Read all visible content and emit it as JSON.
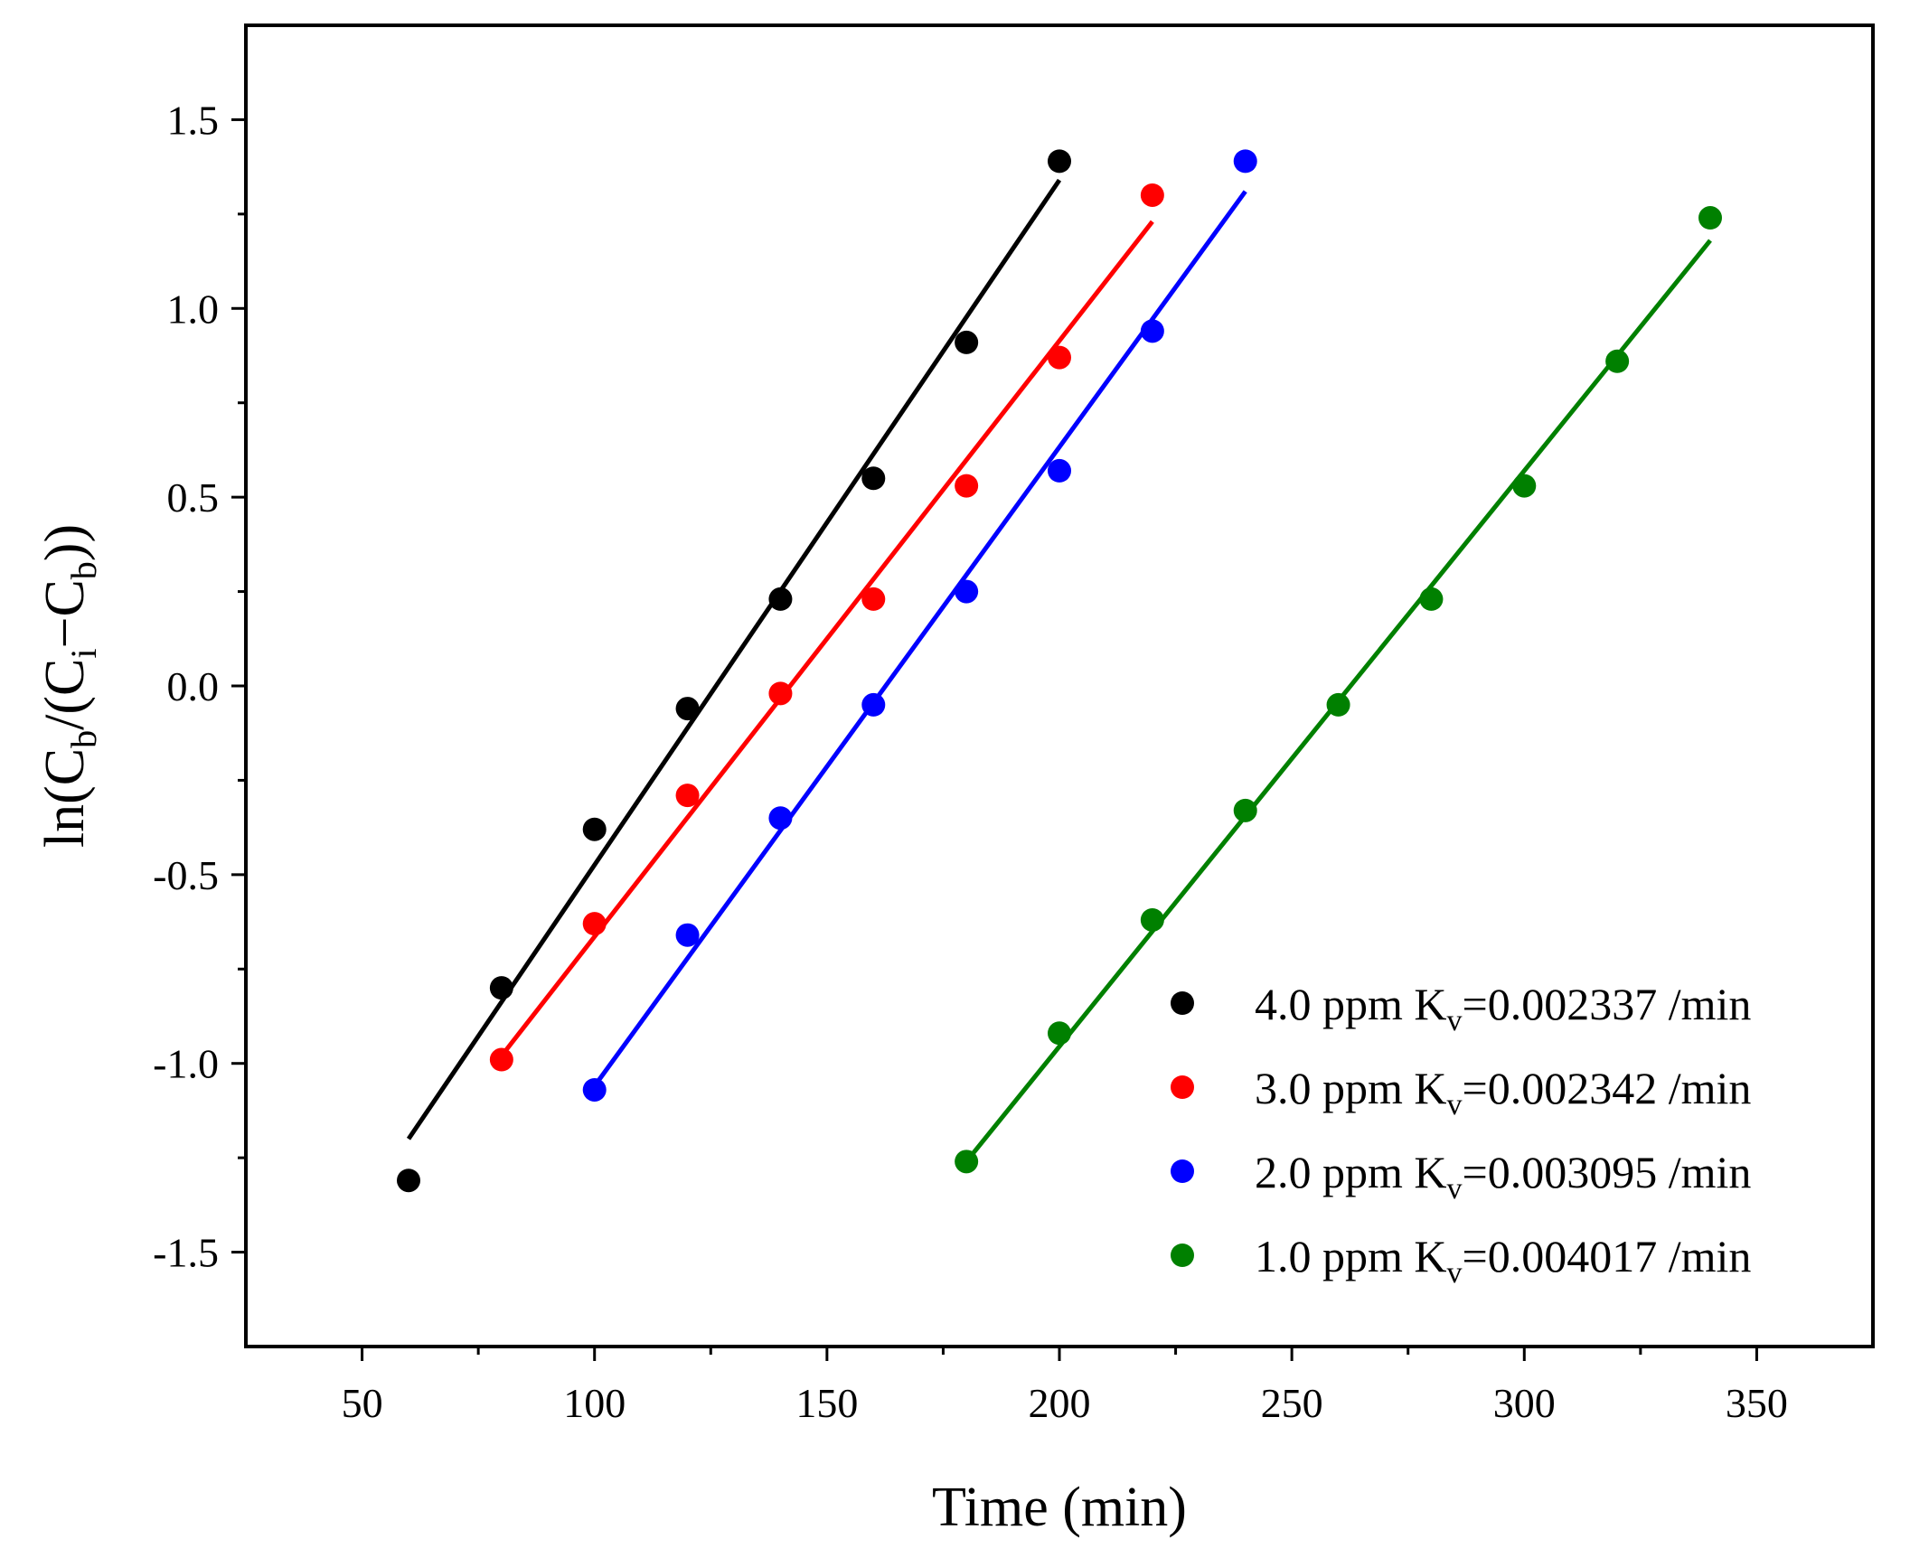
{
  "chart_data": {
    "type": "scatter",
    "title": "",
    "xlabel": "Time (min)",
    "ylabel_parts": {
      "prefix": "ln(C",
      "sub1": "b",
      "mid": "/(C",
      "sub2": "i",
      "mid2": "−C",
      "sub3": "b",
      "suffix": "))"
    },
    "xlim": [
      25,
      375
    ],
    "ylim": [
      -1.75,
      1.75
    ],
    "xticks": [
      50,
      100,
      150,
      200,
      250,
      300,
      350
    ],
    "xtick_labels": [
      "50",
      "100",
      "150",
      "200",
      "250",
      "300",
      "350"
    ],
    "yticks": [
      -1.5,
      -1.0,
      -0.5,
      0.0,
      0.5,
      1.0,
      1.5
    ],
    "ytick_labels": [
      "-1.5",
      "-1.0",
      "-0.5",
      "0.0",
      "0.5",
      "1.0",
      "1.5"
    ],
    "legend_position": "bottom-right",
    "series": [
      {
        "name": "4.0 ppm",
        "label_main": "4.0 ppm K",
        "label_sub": "v",
        "label_rest": "=0.002337 /min",
        "color": "#000000",
        "x": [
          60,
          80,
          100,
          120,
          140,
          160,
          180,
          200
        ],
        "y": [
          -1.31,
          -0.8,
          -0.38,
          -0.06,
          0.23,
          0.55,
          0.91,
          1.39
        ],
        "fit": {
          "x": [
            60,
            200
          ],
          "y": [
            -1.2,
            1.34
          ]
        }
      },
      {
        "name": "3.0 ppm",
        "label_main": "3.0 ppm K",
        "label_sub": "v",
        "label_rest": "=0.002342 /min",
        "color": "#ff0000",
        "x": [
          80,
          100,
          120,
          140,
          160,
          180,
          200,
          220
        ],
        "y": [
          -0.99,
          -0.63,
          -0.29,
          -0.02,
          0.23,
          0.53,
          0.87,
          1.3
        ],
        "fit": {
          "x": [
            80,
            220
          ],
          "y": [
            -0.98,
            1.23
          ]
        }
      },
      {
        "name": "2.0 ppm",
        "label_main": "2.0 ppm K",
        "label_sub": "v",
        "label_rest": "=0.003095 /min",
        "color": "#0000ff",
        "x": [
          100,
          120,
          140,
          160,
          180,
          200,
          220,
          240
        ],
        "y": [
          -1.07,
          -0.66,
          -0.35,
          -0.05,
          0.25,
          0.57,
          0.94,
          1.39
        ],
        "fit": {
          "x": [
            100,
            240
          ],
          "y": [
            -1.06,
            1.31
          ]
        }
      },
      {
        "name": "1.0 ppm",
        "label_main": "1.0 ppm K",
        "label_sub": "v",
        "label_rest": "=0.004017 /min",
        "color": "#008000",
        "x": [
          180,
          200,
          220,
          240,
          260,
          280,
          300,
          320,
          340
        ],
        "y": [
          -1.26,
          -0.92,
          -0.62,
          -0.33,
          -0.05,
          0.23,
          0.53,
          0.86,
          1.24
        ],
        "fit": {
          "x": [
            180,
            340
          ],
          "y": [
            -1.26,
            1.18
          ]
        }
      }
    ]
  }
}
